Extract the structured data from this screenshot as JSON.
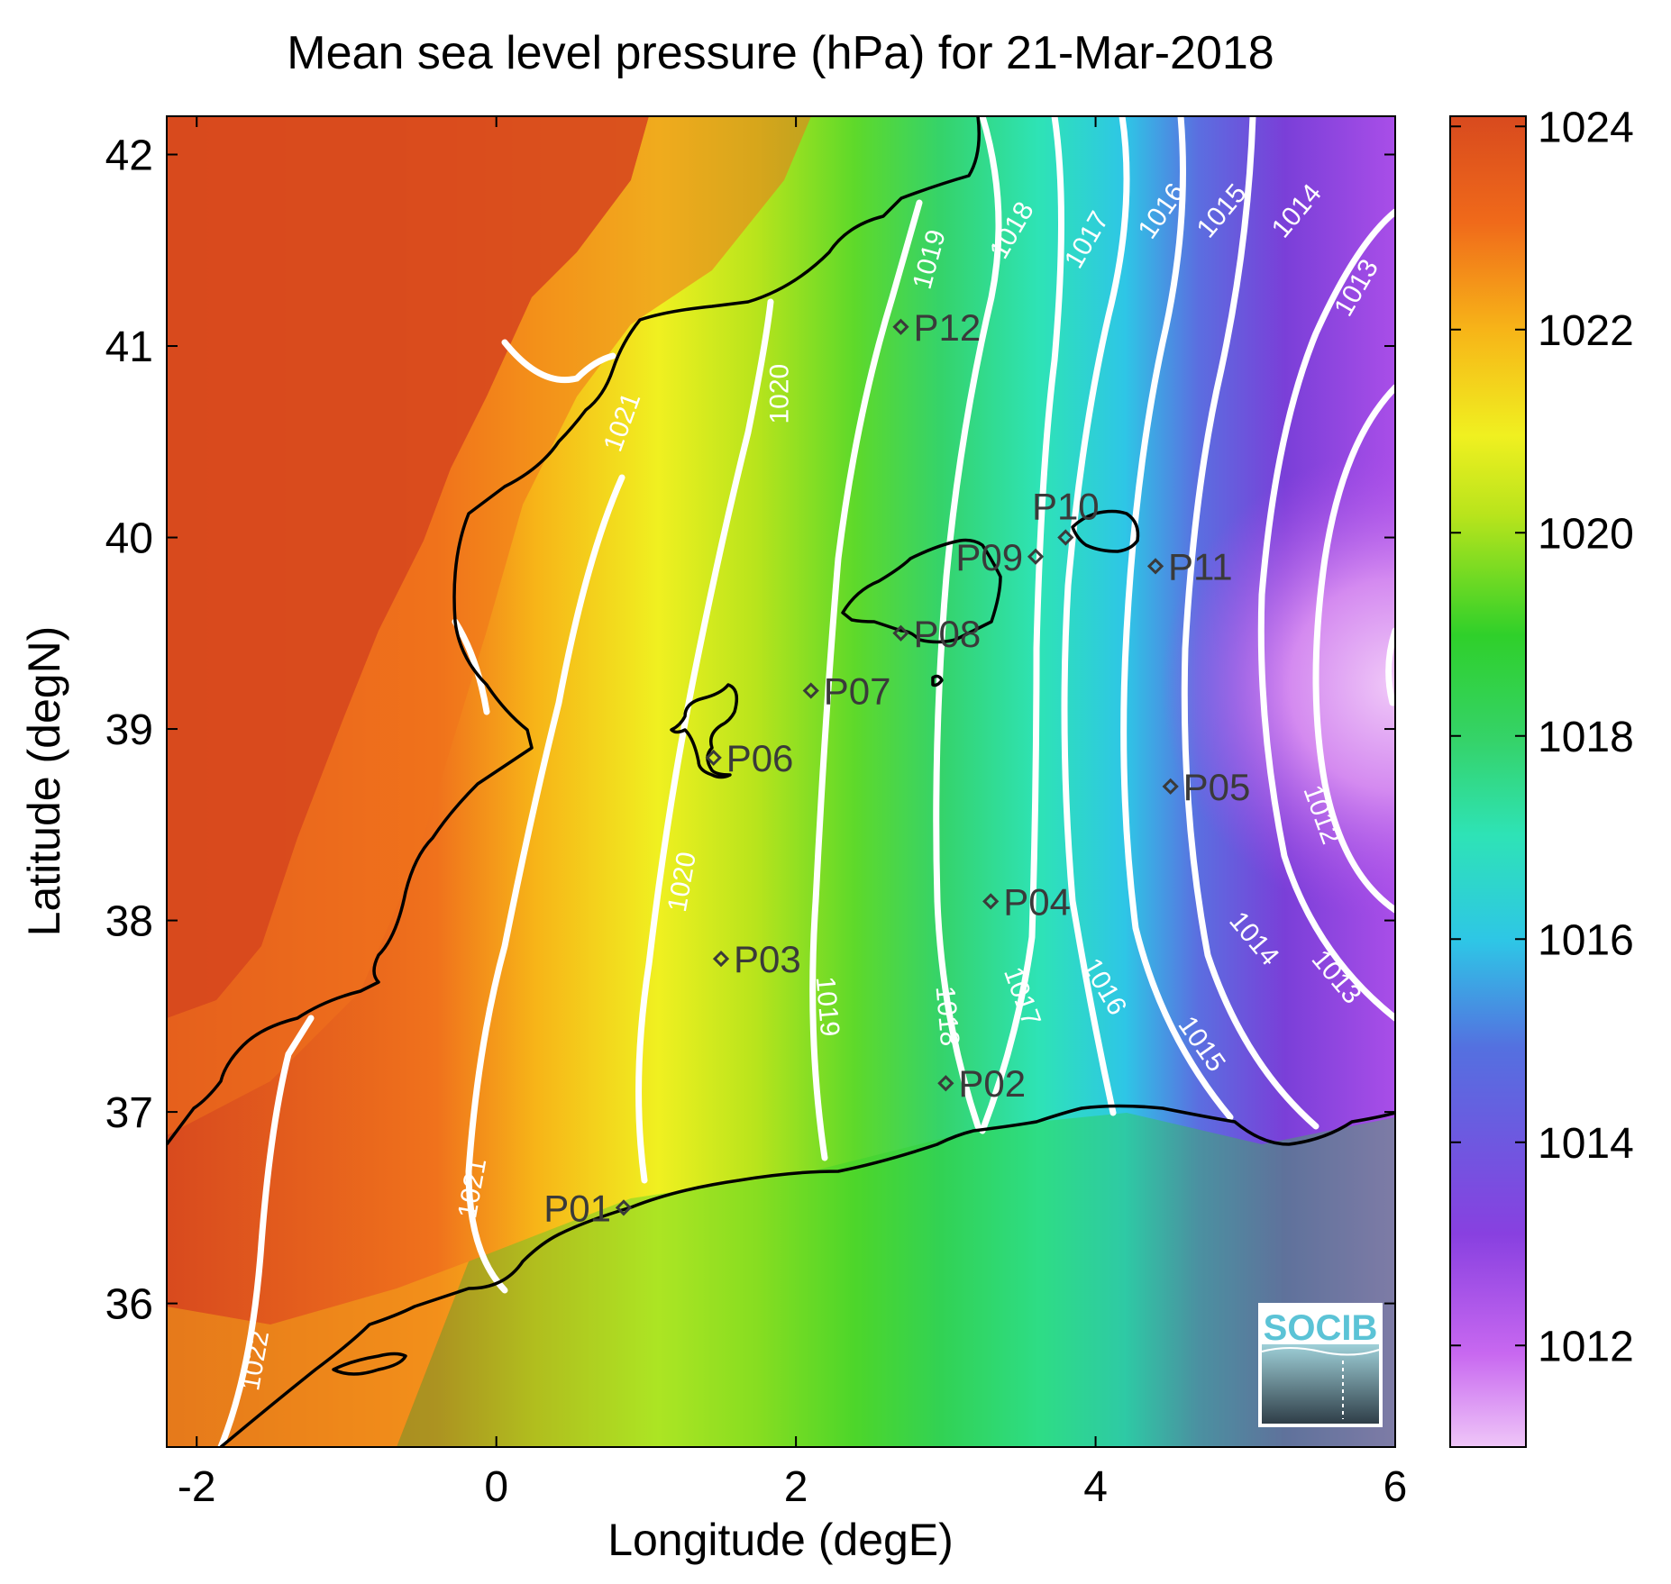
{
  "title": "Mean sea level pressure (hPa) for 21-Mar-2018",
  "axes": {
    "xlabel": "Longitude (degE)",
    "ylabel": "Latitude (degN)",
    "xlim": [
      -2.2,
      6.0
    ],
    "ylim": [
      35.25,
      42.2
    ],
    "xticks": [
      -2,
      0,
      2,
      4,
      6
    ],
    "yticks": [
      36,
      37,
      38,
      39,
      40,
      41,
      42
    ],
    "xtick_labels": [
      "-2",
      "0",
      "2",
      "4",
      "6"
    ],
    "ytick_labels": [
      "36",
      "37",
      "38",
      "39",
      "40",
      "41",
      "42"
    ]
  },
  "colorbar": {
    "range": [
      1011,
      1024.1
    ],
    "ticks": [
      1012,
      1014,
      1016,
      1018,
      1020,
      1022,
      1024
    ],
    "tick_labels": [
      "1012",
      "1014",
      "1016",
      "1018",
      "1020",
      "1022",
      "1024"
    ],
    "colormap": [
      "#e9b8f5",
      "#a94ee8",
      "#7a3fd8",
      "#5b6ee0",
      "#2ec6e6",
      "#2ee3b6",
      "#35d36a",
      "#5ed92a",
      "#b8e41c",
      "#f0f020",
      "#f7b418",
      "#f0721c",
      "#d84a1e"
    ]
  },
  "chart_data": {
    "type": "heatmap",
    "quantity": "Mean sea level pressure",
    "unit": "hPa",
    "date": "21-Mar-2018",
    "contour_levels": [
      1012,
      1013,
      1014,
      1015,
      1016,
      1017,
      1018,
      1019,
      1020,
      1021,
      1022
    ],
    "contour_labels": [
      {
        "text": "1022",
        "lon": -1.6,
        "lat": 35.7,
        "rot": -80
      },
      {
        "text": "1021",
        "lon": 0.85,
        "lat": 40.6,
        "rot": -70
      },
      {
        "text": "1021",
        "lon": -0.15,
        "lat": 36.6,
        "rot": -80
      },
      {
        "text": "1020",
        "lon": 1.9,
        "lat": 40.75,
        "rot": -90
      },
      {
        "text": "1020",
        "lon": 1.25,
        "lat": 38.2,
        "rot": -80
      },
      {
        "text": "1019",
        "lon": 2.9,
        "lat": 41.45,
        "rot": -75
      },
      {
        "text": "1019",
        "lon": 2.2,
        "lat": 37.55,
        "rot": 85
      },
      {
        "text": "1018",
        "lon": 3.45,
        "lat": 41.6,
        "rot": -60
      },
      {
        "text": "1018",
        "lon": 3.0,
        "lat": 37.5,
        "rot": 85
      },
      {
        "text": "1017",
        "lon": 3.95,
        "lat": 41.55,
        "rot": -60
      },
      {
        "text": "1017",
        "lon": 3.5,
        "lat": 37.6,
        "rot": 70
      },
      {
        "text": "1016",
        "lon": 4.45,
        "lat": 41.7,
        "rot": -55
      },
      {
        "text": "1016",
        "lon": 4.05,
        "lat": 37.65,
        "rot": 60
      },
      {
        "text": "1015",
        "lon": 4.85,
        "lat": 41.7,
        "rot": -50
      },
      {
        "text": "1015",
        "lon": 4.7,
        "lat": 37.35,
        "rot": 55
      },
      {
        "text": "1014",
        "lon": 5.35,
        "lat": 41.7,
        "rot": -50
      },
      {
        "text": "1014",
        "lon": 5.05,
        "lat": 37.9,
        "rot": 50
      },
      {
        "text": "1013",
        "lon": 5.75,
        "lat": 41.3,
        "rot": -60
      },
      {
        "text": "1013",
        "lon": 5.6,
        "lat": 37.7,
        "rot": 50
      },
      {
        "text": "1012",
        "lon": 5.5,
        "lat": 38.55,
        "rot": 70
      }
    ],
    "points": [
      {
        "name": "P01",
        "lon": 0.85,
        "lat": 36.5,
        "label_side": "left"
      },
      {
        "name": "P02",
        "lon": 3.0,
        "lat": 37.15,
        "label_side": "right"
      },
      {
        "name": "P03",
        "lon": 1.5,
        "lat": 37.8,
        "label_side": "right"
      },
      {
        "name": "P04",
        "lon": 3.3,
        "lat": 38.1,
        "label_side": "right"
      },
      {
        "name": "P05",
        "lon": 4.5,
        "lat": 38.7,
        "label_side": "right"
      },
      {
        "name": "P06",
        "lon": 1.45,
        "lat": 38.85,
        "label_side": "right"
      },
      {
        "name": "P07",
        "lon": 2.1,
        "lat": 39.2,
        "label_side": "right"
      },
      {
        "name": "P08",
        "lon": 2.7,
        "lat": 39.5,
        "label_side": "right"
      },
      {
        "name": "P09",
        "lon": 3.6,
        "lat": 39.9,
        "label_side": "left"
      },
      {
        "name": "P10",
        "lon": 3.8,
        "lat": 40.0,
        "label_side": "above"
      },
      {
        "name": "P11",
        "lon": 4.4,
        "lat": 39.85,
        "label_side": "right"
      },
      {
        "name": "P12",
        "lon": 2.7,
        "lat": 41.1,
        "label_side": "right"
      }
    ]
  },
  "logo": {
    "text": "SOCIB"
  }
}
